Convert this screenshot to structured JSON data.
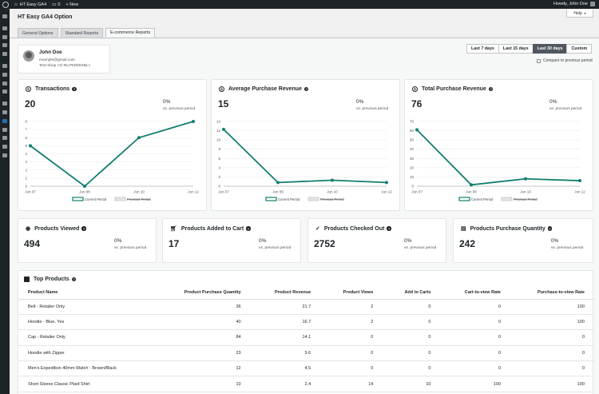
{
  "adminbar": {
    "site_name": "HT Easy GA4",
    "comments_count": "0",
    "new_label": "+ New",
    "howdy": "Howdy, John Doe"
  },
  "page": {
    "title": "HT Easy GA4 Option",
    "help_label": "Help"
  },
  "tabs": [
    {
      "label": "General Options",
      "active": false
    },
    {
      "label": "Standard Reports",
      "active": false
    },
    {
      "label": "E-commerce Reports",
      "active": true
    }
  ],
  "user": {
    "name": "John Doe",
    "email": "example@gmail.com",
    "property": "Test Shop <G-NU7ED00XBL>"
  },
  "date_range": {
    "options": [
      "Last 7 days",
      "Last 15 days",
      "Last 30 days",
      "Custom"
    ],
    "active": "Last 30 days",
    "compare_label": "Compare to previous period",
    "compare_checked": false
  },
  "charts_meta": [
    {
      "title": "Transactions",
      "value": "20",
      "pct": "0%",
      "vs": "vs. previous period"
    },
    {
      "title": "Average Purchase Revenue",
      "value": "15",
      "pct": "0%",
      "vs": "vs. previous period"
    },
    {
      "title": "Total Purchase Revenue",
      "value": "76",
      "pct": "0%",
      "vs": "vs. previous period"
    }
  ],
  "chart_data": [
    {
      "type": "line",
      "title": "Transactions",
      "categories": [
        "Jun 07",
        "Jun 08",
        "Jun 10",
        "Jun 12"
      ],
      "series": [
        {
          "name": "Current Period",
          "values": [
            5,
            0,
            6,
            8
          ]
        },
        {
          "name": "Previous Period",
          "values": [
            0,
            0,
            0,
            0
          ]
        }
      ],
      "ylim": [
        0,
        8
      ],
      "yticks": [
        "0",
        "1",
        "2",
        "3",
        "4",
        "5",
        "6",
        "7",
        "8"
      ],
      "legend": "bottom"
    },
    {
      "type": "line",
      "title": "Average Purchase Revenue",
      "categories": [
        "Jun 07",
        "Jun 08",
        "Jun 10",
        "Jun 12"
      ],
      "series": [
        {
          "name": "Current Period",
          "values": [
            12.3,
            0.8,
            1.3,
            0.8
          ]
        },
        {
          "name": "Previous Period",
          "values": [
            0,
            0,
            0,
            0
          ]
        }
      ],
      "ylim": [
        0,
        14
      ],
      "yticks": [
        "0",
        "2",
        "4",
        "6",
        "8",
        "10",
        "12",
        "14"
      ],
      "legend": "bottom"
    },
    {
      "type": "line",
      "title": "Total Purchase Revenue",
      "categories": [
        "Jun 07",
        "Jun 08",
        "Jun 10",
        "Jun 12"
      ],
      "series": [
        {
          "name": "Current Period",
          "values": [
            61,
            1.5,
            8,
            6
          ]
        },
        {
          "name": "Previous Period",
          "values": [
            0,
            0,
            0,
            0
          ]
        }
      ],
      "ylim": [
        0,
        70
      ],
      "yticks": [
        "0",
        "10",
        "20",
        "30",
        "40",
        "50",
        "60",
        "70"
      ],
      "legend": "bottom"
    }
  ],
  "legend": {
    "current": "Current Period",
    "previous": "Previous Period"
  },
  "stats": [
    {
      "title": "Products Viewed",
      "icon": "eye-icon",
      "value": "494",
      "pct": "0%",
      "vs": "vs. previous period"
    },
    {
      "title": "Products Added to Cart",
      "icon": "cart-icon",
      "value": "17",
      "pct": "0%",
      "vs": "vs. previous period"
    },
    {
      "title": "Products Checked Out",
      "icon": "check-icon",
      "value": "2752",
      "pct": "0%",
      "vs": "vs. previous period"
    },
    {
      "title": "Products Purchase Quantity",
      "icon": "receipt-icon",
      "value": "242",
      "pct": "0%",
      "vs": "vs. previous period"
    }
  ],
  "top_products": {
    "title": "Top Products",
    "columns": [
      "Product Name",
      "Product Purchase Quantity",
      "Product Revenue",
      "Product Views",
      "Add to Carts",
      "Cart-to-view Rate",
      "Purchase-to-view Rate"
    ],
    "rows": [
      [
        "Belt - Retailer Only",
        "36",
        "21.7",
        "2",
        "0",
        "0",
        "100"
      ],
      [
        "Hoodie - Blue, Yes",
        "40",
        "16.7",
        "2",
        "0",
        "0",
        "100"
      ],
      [
        "Cap - Retailer Only",
        "84",
        "14.1",
        "0",
        "0",
        "0",
        "0"
      ],
      [
        "Hoodie with Zipper",
        "23",
        "9.6",
        "0",
        "0",
        "0",
        "0"
      ],
      [
        "Men's Expedition 40mm Watch - Brown/Black",
        "12",
        "4.5",
        "0",
        "0",
        "0",
        "0"
      ],
      [
        "Short Sleeve Classic Plaid Shirt",
        "10",
        "2.4",
        "14",
        "10",
        "100",
        "100"
      ]
    ]
  },
  "colors": {
    "accent": "#117e6f",
    "previous": "#c3c4c7",
    "active_btn": "#50575e"
  }
}
